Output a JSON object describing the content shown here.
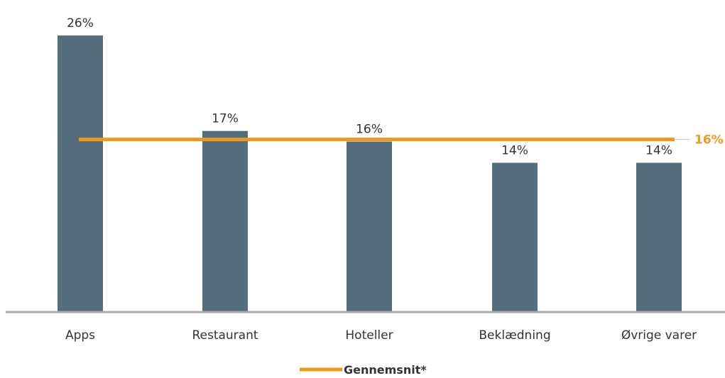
{
  "chart_data": {
    "type": "bar",
    "categories": [
      "Apps",
      "Restaurant",
      "Hoteller",
      "Beklædning",
      "Øvrige varer"
    ],
    "values": [
      26,
      17,
      16,
      14,
      14
    ],
    "value_labels": [
      "26%",
      "17%",
      "16%",
      "14%",
      "14%"
    ],
    "unit": "%",
    "ylim": [
      0,
      30
    ],
    "grid": false,
    "average": {
      "name": "Gennemsnit*",
      "value": 16,
      "label": "16%"
    },
    "legend": {
      "placement": "bottom-center",
      "entries": [
        "Gennemsnit*"
      ]
    },
    "colors": {
      "bar": "#546e7e",
      "average": "#eb9a1c",
      "axis": "#aaaaaa",
      "text": "#333333"
    }
  }
}
